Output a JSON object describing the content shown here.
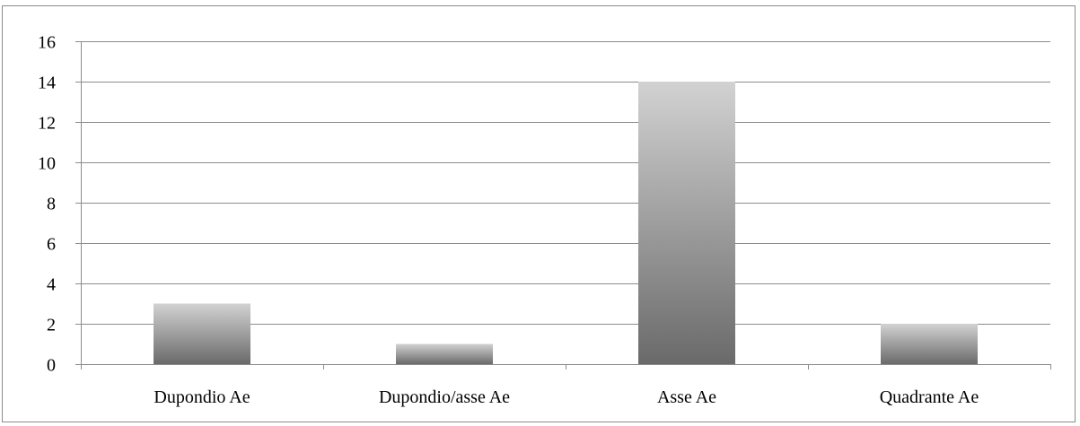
{
  "chart_data": {
    "type": "bar",
    "categories": [
      "Dupondio Ae",
      "Dupondio/asse Ae",
      "Asse Ae",
      "Quadrante Ae"
    ],
    "values": [
      3,
      1,
      14,
      2
    ],
    "title": "",
    "xlabel": "",
    "ylabel": "",
    "ylim": [
      0,
      16
    ],
    "yticks": [
      0,
      2,
      4,
      6,
      8,
      10,
      12,
      14,
      16
    ],
    "grid": true,
    "legend": "none",
    "colors": {
      "bar_top": "#d2d2d2",
      "bar_bottom": "#6a6a6a",
      "grid": "#8c8c8c"
    }
  }
}
